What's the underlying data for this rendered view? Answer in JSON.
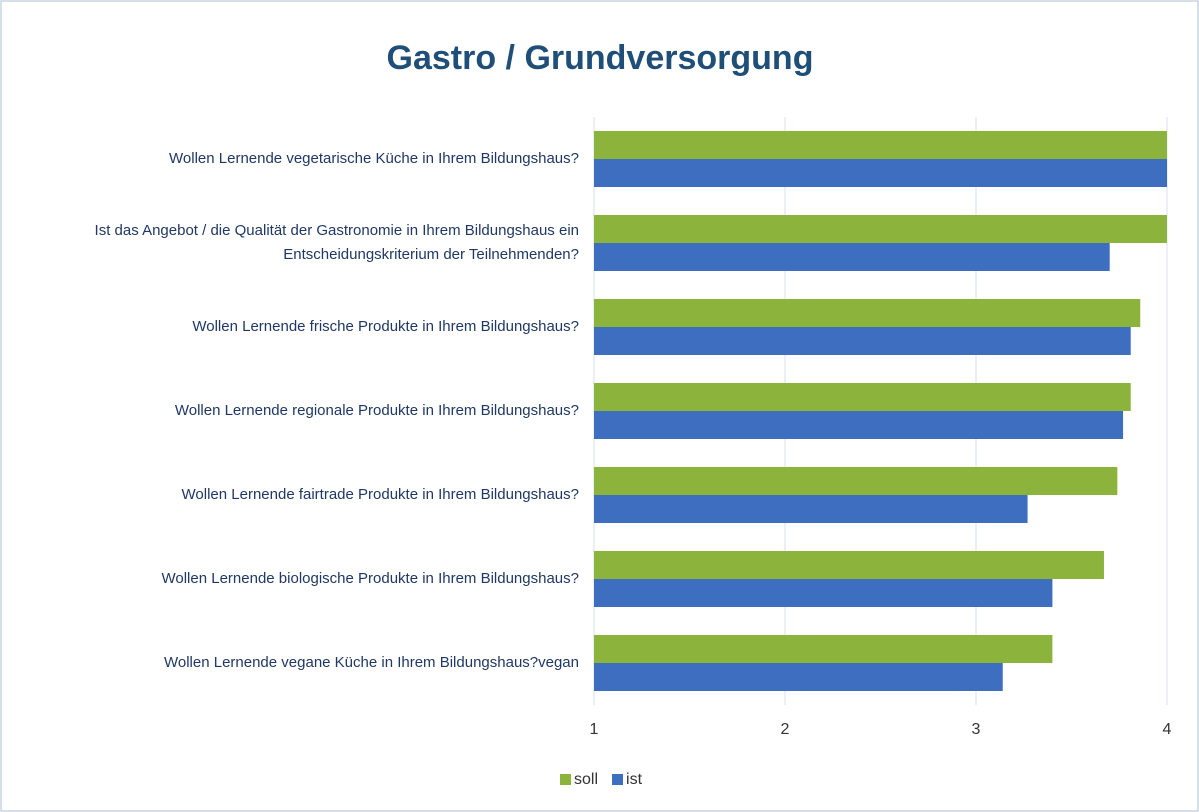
{
  "chart_data": {
    "type": "hbar",
    "title": "Gastro / Grundversorgung",
    "categories": [
      "Wollen Lernende vegetarische Küche in Ihrem Bildungshaus?",
      "Ist das Angebot / die Qualität der Gastronomie in Ihrem Bildungshaus ein Entscheidungskriterium der Teilnehmenden?",
      "Wollen Lernende frische Produkte in Ihrem Bildungshaus?",
      "Wollen Lernende regionale Produkte in Ihrem Bildungshaus?",
      "Wollen Lernende fairtrade Produkte in Ihrem Bildungshaus?",
      "Wollen Lernende biologische Produkte in Ihrem Bildungshaus?",
      "Wollen Lernende vegane Küche in Ihrem Bildungshaus?vegan"
    ],
    "series": [
      {
        "name": "soll",
        "color": "#8cb43c",
        "values": [
          4,
          4,
          3.86,
          3.81,
          3.74,
          3.67,
          3.4
        ]
      },
      {
        "name": "ist",
        "color": "#3d6ebf",
        "values": [
          4,
          3.7,
          3.81,
          3.77,
          3.27,
          3.4,
          3.14
        ]
      }
    ],
    "xlim": [
      1,
      4
    ],
    "xticks": [
      1,
      2,
      3,
      4
    ],
    "grid": true,
    "legend": "bottom"
  }
}
